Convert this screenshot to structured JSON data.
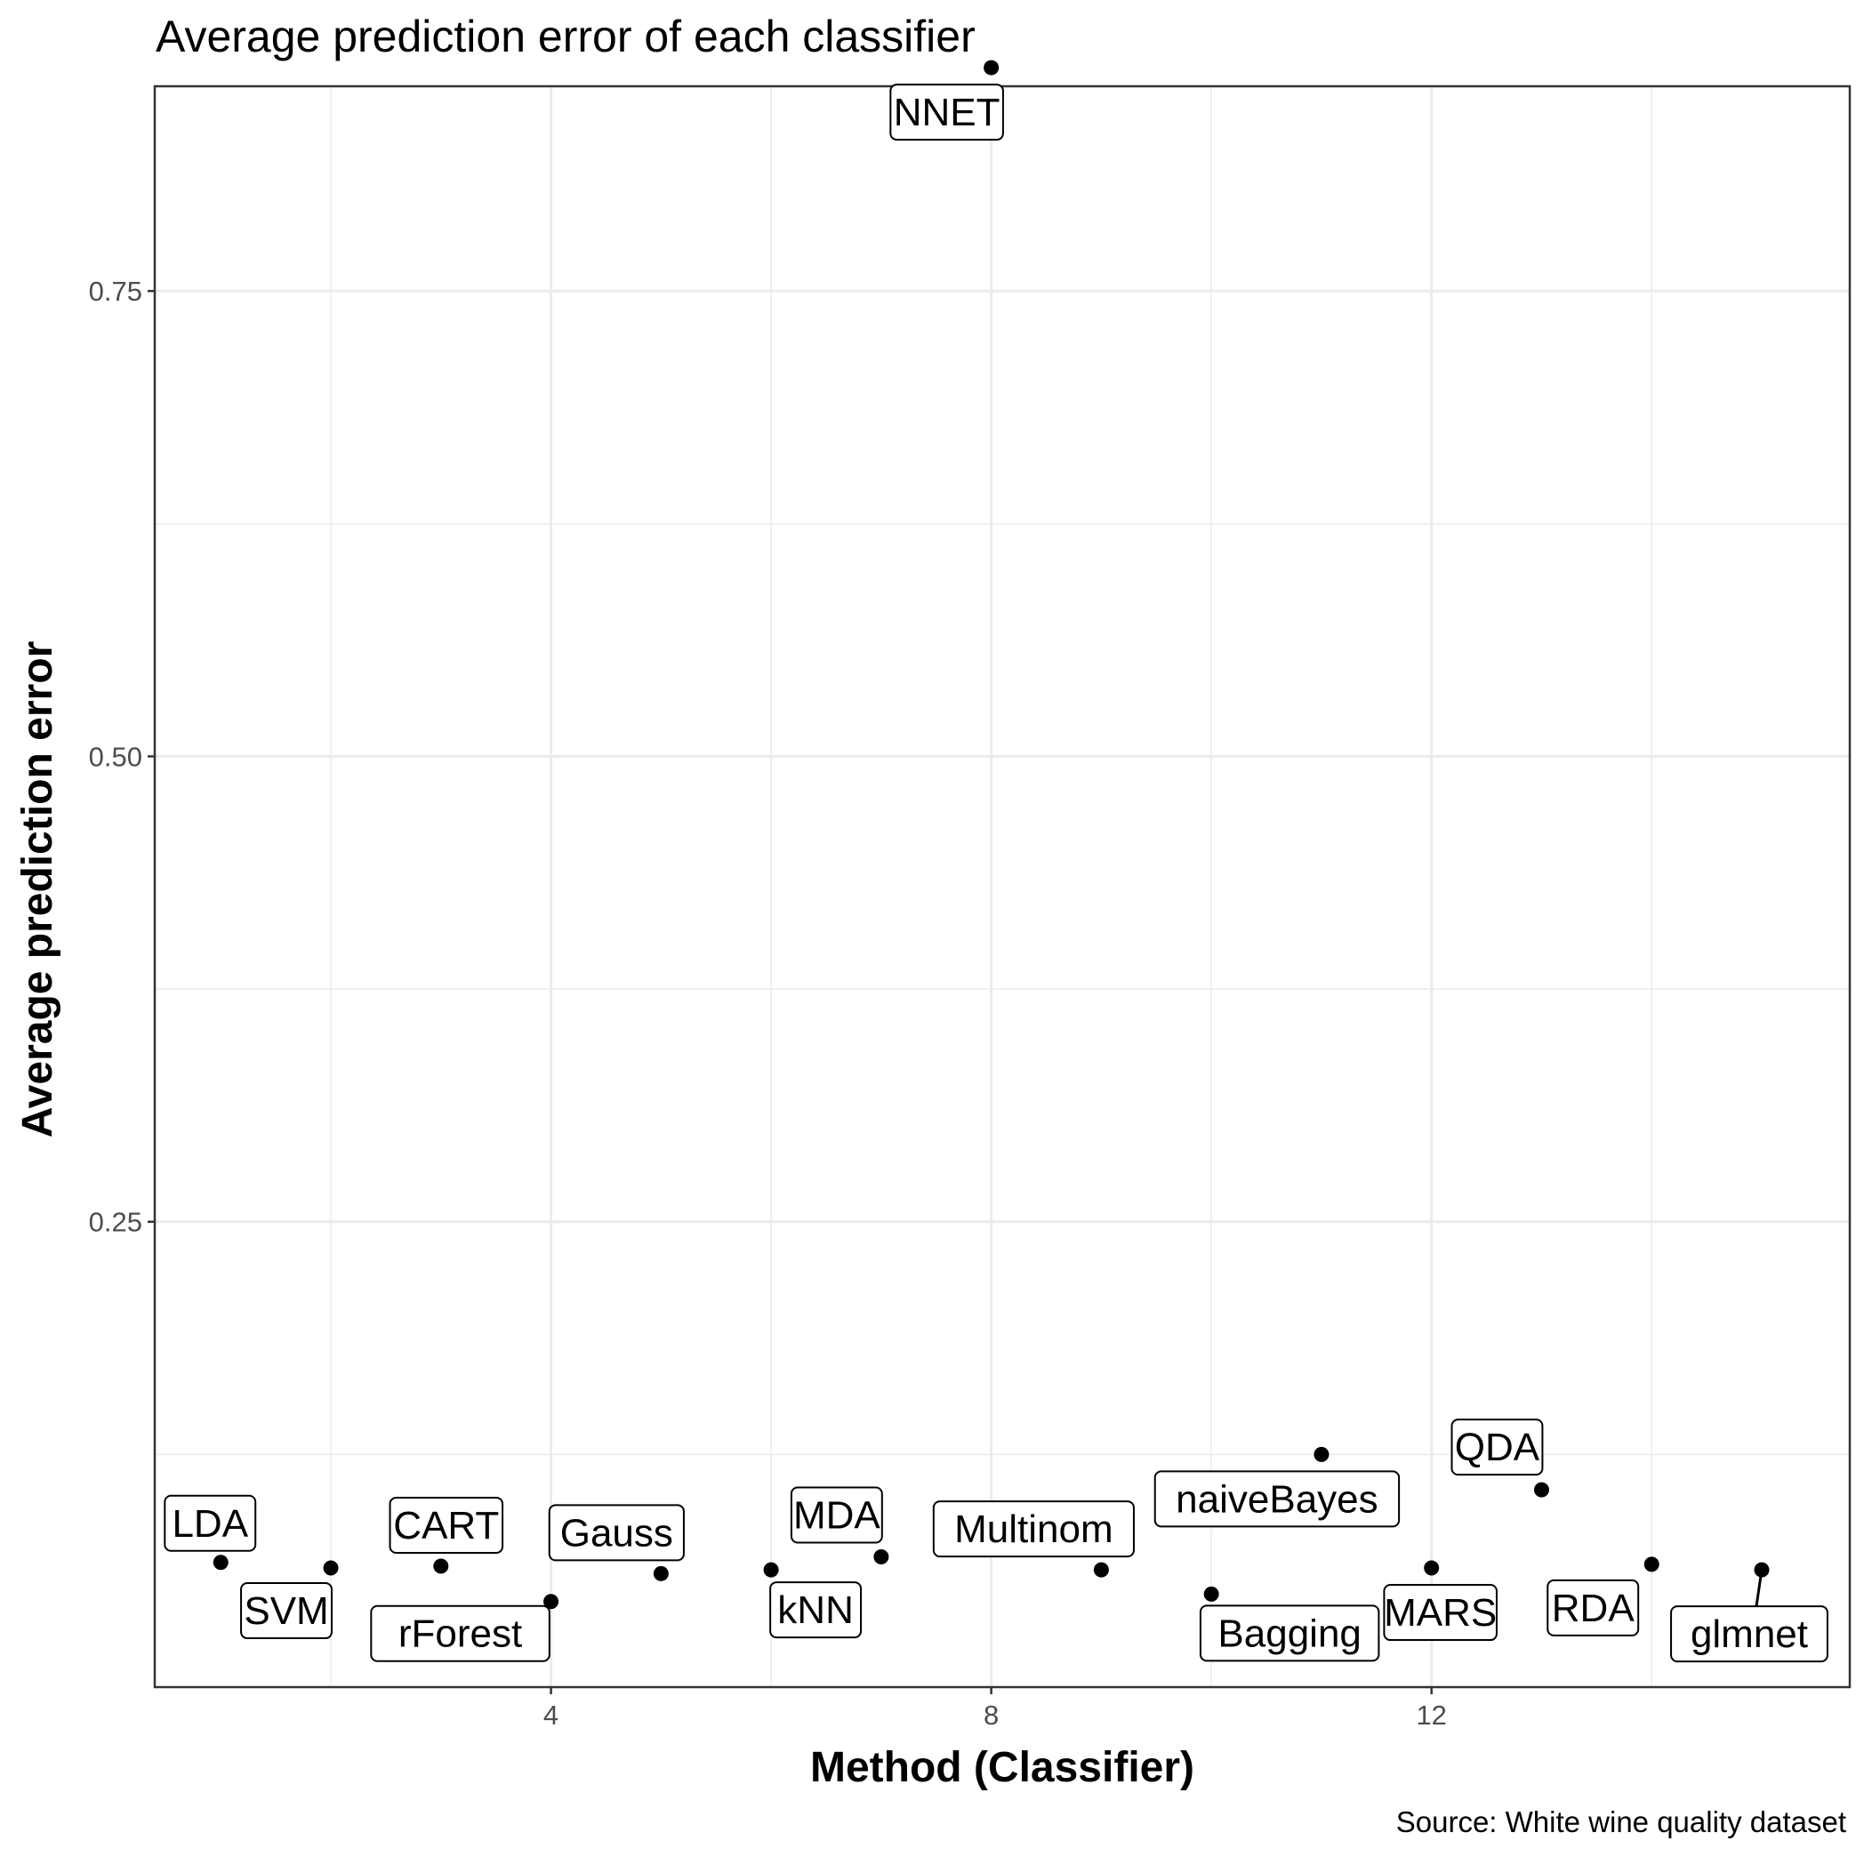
{
  "title": "Average prediction error of each classifier",
  "caption": "Source: White wine quality dataset",
  "chart_data": {
    "type": "scatter",
    "title": "Average prediction error of each classifier",
    "xlabel": "Method (Classifier)",
    "ylabel": "Average prediction error",
    "caption": "Source: White wine quality dataset",
    "xlim": [
      0.4,
      15.8
    ],
    "ylim": [
      0.0,
      0.86
    ],
    "x_ticks": [
      4,
      8,
      12
    ],
    "x_tick_labels": [
      "4",
      "8",
      "12"
    ],
    "y_ticks": [
      0.25,
      0.5,
      0.75
    ],
    "y_tick_labels": [
      "0.25",
      "0.50",
      "0.75"
    ],
    "grid": true,
    "points": [
      {
        "x": 1,
        "y": 0.067,
        "label": "LDA"
      },
      {
        "x": 2,
        "y": 0.064,
        "label": "SVM"
      },
      {
        "x": 3,
        "y": 0.065,
        "label": "CART"
      },
      {
        "x": 4,
        "y": 0.046,
        "label": "rForest"
      },
      {
        "x": 5,
        "y": 0.061,
        "label": "Gauss"
      },
      {
        "x": 6,
        "y": 0.063,
        "label": "kNN"
      },
      {
        "x": 7,
        "y": 0.07,
        "label": "MDA"
      },
      {
        "x": 8,
        "y": 0.87,
        "label": "NNET"
      },
      {
        "x": 9,
        "y": 0.063,
        "label": "Multinom"
      },
      {
        "x": 10,
        "y": 0.05,
        "label": "Bagging"
      },
      {
        "x": 11,
        "y": 0.125,
        "label": "naiveBayes"
      },
      {
        "x": 12,
        "y": 0.064,
        "label": "MARS"
      },
      {
        "x": 13,
        "y": 0.106,
        "label": "QDA"
      },
      {
        "x": 14,
        "y": 0.066,
        "label": "RDA"
      },
      {
        "x": 15,
        "y": 0.063,
        "label": "glmnet"
      }
    ]
  }
}
